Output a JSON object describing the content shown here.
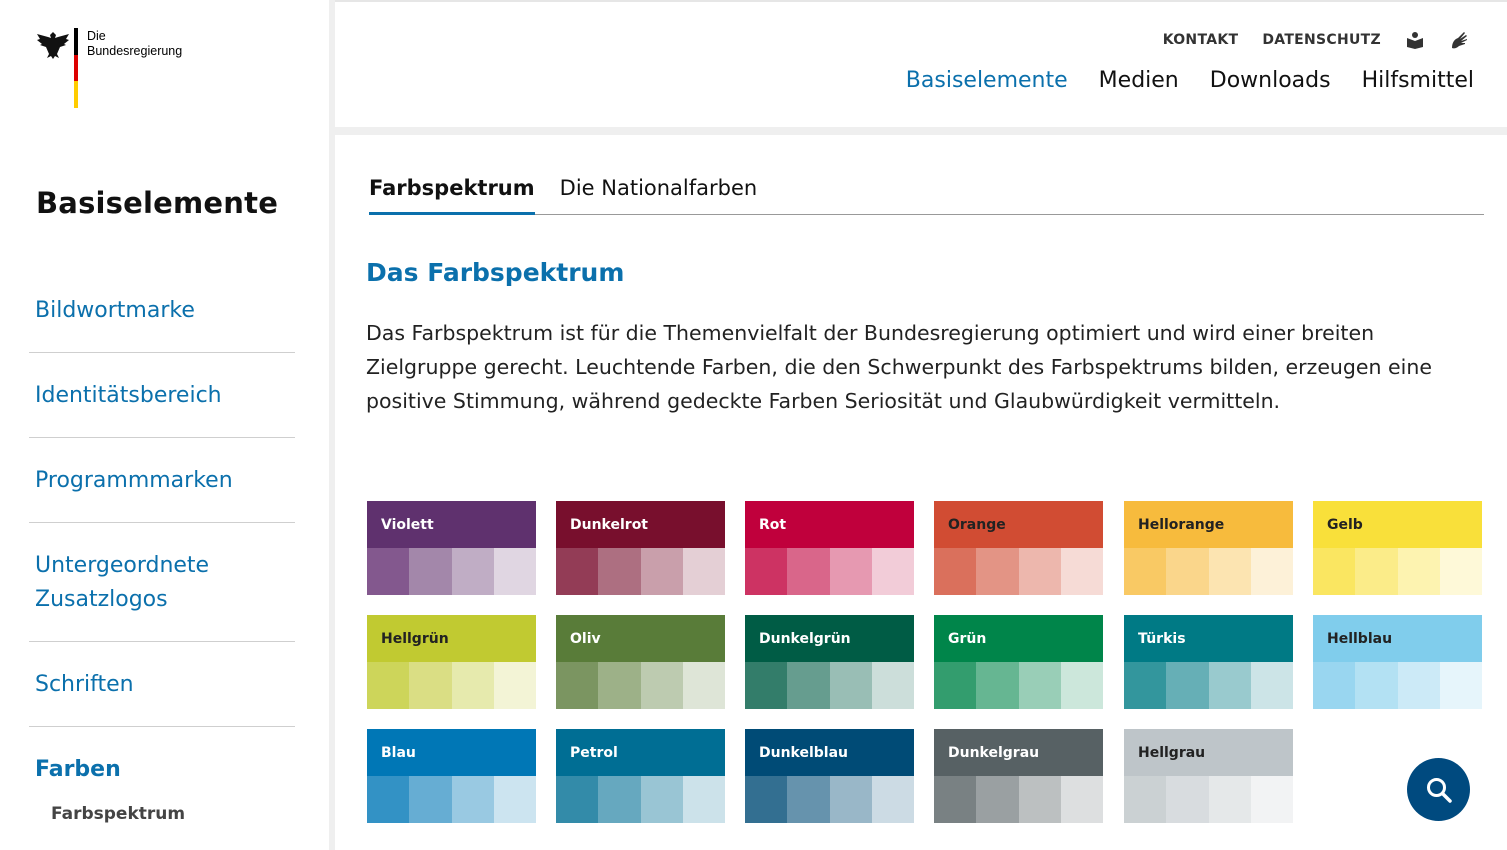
{
  "logo": {
    "line1": "Die",
    "line2": "Bundesregierung"
  },
  "sidebar": {
    "title": "Basiselemente",
    "items": [
      {
        "label": "Bildwortmarke"
      },
      {
        "label": "Identitätsbereich"
      },
      {
        "label": "Programmmarken"
      },
      {
        "label": "Untergeordnete Zusatzlogos"
      },
      {
        "label": "Schriften"
      },
      {
        "label": "Farben"
      }
    ],
    "sub_item": "Farbspektrum"
  },
  "header": {
    "meta": {
      "contact": "KONTAKT",
      "privacy": "DATENSCHUTZ"
    },
    "nav": [
      "Basiselemente",
      "Medien",
      "Downloads",
      "Hilfsmittel"
    ],
    "active_nav": "Basiselemente"
  },
  "tabs": [
    "Farbspektrum",
    "Die Nationalfarben"
  ],
  "section_title": "Das Farbspektrum",
  "intro": "Das Farbspektrum ist für die Themenvielfalt der Bundesregierung optimiert und wird einer breiten Zielgruppe gerecht. Leuchtende Farben, die den Schwerpunkt des Farbspektrums bilden, erzeugen eine positive Stimmung, während gedeckte Farben Seriosität und Glaubwürdigkeit vermitteln.",
  "colors": [
    {
      "name": "Violett",
      "text": "#ffffff",
      "shades": [
        "#5f316e",
        "#83588e",
        "#a387aa",
        "#c0adc5",
        "#e0d6e2"
      ]
    },
    {
      "name": "Dunkelrot",
      "text": "#ffffff",
      "shades": [
        "#780f2d",
        "#933c56",
        "#ad6f81",
        "#c99fab",
        "#e4cfd5"
      ]
    },
    {
      "name": "Rot",
      "text": "#ffffff",
      "shades": [
        "#c0003c",
        "#cd3363",
        "#d9668a",
        "#e699b1",
        "#f2ccd8"
      ]
    },
    {
      "name": "Orange",
      "text": "#222222",
      "shades": [
        "#d14c33",
        "#da705c",
        "#e39485",
        "#edb7ad",
        "#f6dbd6"
      ]
    },
    {
      "name": "Hellorange",
      "text": "#222222",
      "shades": [
        "#f7bb3d",
        "#f9c964",
        "#fad68b",
        "#fce4b1",
        "#fdf1d8"
      ]
    },
    {
      "name": "Gelb",
      "text": "#222222",
      "shades": [
        "#f9e03a",
        "#fae661",
        "#fbec89",
        "#fdf3b0",
        "#fef9d8"
      ]
    },
    {
      "name": "Hellgrün",
      "text": "#222222",
      "shades": [
        "#c1ca31",
        "#cdd55a",
        "#dade84",
        "#e6eaad",
        "#f3f4d6"
      ]
    },
    {
      "name": "Oliv",
      "text": "#ffffff",
      "shades": [
        "#597c39",
        "#7b9561",
        "#9db188",
        "#bdcbb0",
        "#dee5d7"
      ]
    },
    {
      "name": "Dunkelgrün",
      "text": "#ffffff",
      "shades": [
        "#005c45",
        "#337d6a",
        "#669d8f",
        "#99beb5",
        "#ccdeda"
      ]
    },
    {
      "name": "Grün",
      "text": "#ffffff",
      "shades": [
        "#00854a",
        "#339d6e",
        "#66b692",
        "#99ceb7",
        "#cce7db"
      ]
    },
    {
      "name": "Türkis",
      "text": "#ffffff",
      "shades": [
        "#007a85",
        "#33969d",
        "#66afb6",
        "#99cace",
        "#cce4e7"
      ]
    },
    {
      "name": "Hellblau",
      "text": "#222222",
      "shades": [
        "#80cdec",
        "#99d6f0",
        "#b3e1f3",
        "#cceaf7",
        "#e6f5fb"
      ]
    },
    {
      "name": "Blau",
      "text": "#ffffff",
      "shades": [
        "#0077b6",
        "#3392c5",
        "#66add3",
        "#99c9e2",
        "#cce4f0"
      ]
    },
    {
      "name": "Petrol",
      "text": "#ffffff",
      "shades": [
        "#006e94",
        "#338ba9",
        "#66a8bf",
        "#99c5d4",
        "#cce2ea"
      ]
    },
    {
      "name": "Dunkelblau",
      "text": "#ffffff",
      "shades": [
        "#004b76",
        "#336f91",
        "#6693ad",
        "#99b7c8",
        "#ccdbe4"
      ]
    },
    {
      "name": "Dunkelgrau",
      "text": "#ffffff",
      "shades": [
        "#576164",
        "#798183",
        "#9aa0a2",
        "#bcc0c1",
        "#dddfe0"
      ]
    },
    {
      "name": "Hellgrau",
      "text": "#222222",
      "shades": [
        "#bec5c9",
        "#cbd1d3",
        "#d8dcdf",
        "#e5e8e9",
        "#f2f3f4"
      ]
    }
  ],
  "ui_colors": {
    "accent": "#0b70ac",
    "search_button": "#004a7f"
  },
  "icons": [
    "eagle-icon",
    "sign-language-book-icon",
    "sign-language-hand-icon",
    "search-icon"
  ]
}
